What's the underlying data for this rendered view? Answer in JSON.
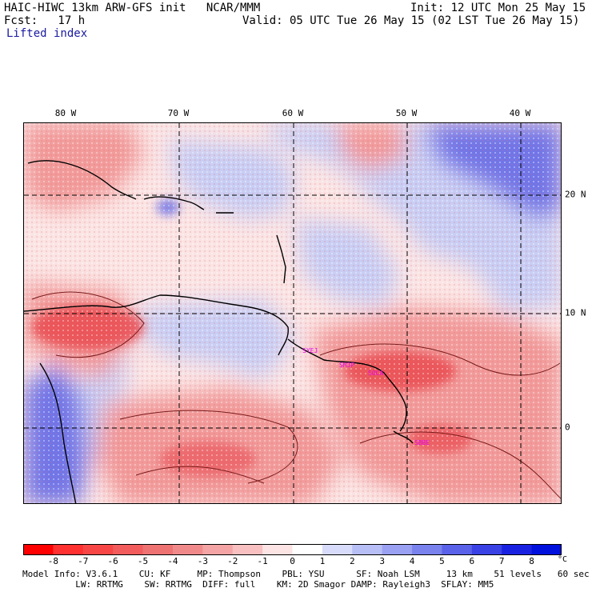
{
  "header": {
    "title_line": "HAIC-HIWC 13km ARW-GFS init   NCAR/MMM",
    "fcst_line": "Fcst:   17 h",
    "init_line": "Init: 12 UTC Mon 25 May 15",
    "valid_line": "Valid: 05 UTC Tue 26 May 15 (02 LST Tue 26 May 15)",
    "field_name": "Lifted index"
  },
  "map": {
    "longitude_labels": [
      "80 W",
      "70 W",
      "60 W",
      "50 W",
      "40 W"
    ],
    "latitude_labels": [
      "20 N",
      "10 N",
      "0"
    ],
    "station_labels": [
      "SYEJ",
      "SMJP",
      "SOCA",
      "SBBE"
    ],
    "colors": {
      "strong_negative": "#e8464b",
      "negative": "#f29a9a",
      "neutral": "#fbe4e4",
      "positive": "#c8cdf4",
      "strong_positive": "#6f74e8",
      "station_label": "#e600e6"
    }
  },
  "colorbar": {
    "ticks": [
      "-8",
      "-7",
      "-6",
      "-5",
      "-4",
      "-3",
      "-2",
      "-1",
      "0",
      "1",
      "2",
      "3",
      "4",
      "5",
      "6",
      "7",
      "8"
    ],
    "unit": "°C",
    "colors": [
      "#ff0000",
      "#ff3030",
      "#f84646",
      "#f25c5c",
      "#ee7272",
      "#f08a8a",
      "#f4a4a4",
      "#f8c0c0",
      "#fde4e4",
      "#ffffff",
      "#d8dcfa",
      "#b8bef6",
      "#9aa0f2",
      "#7a82ee",
      "#5a62ea",
      "#3a42e6",
      "#1a22e2",
      "#0010dd"
    ]
  },
  "footer": {
    "line1": "Model Info: V3.6.1    CU: KF     MP: Thompson    PBL: YSU      SF: Noah LSM     13 km    51 levels   60 sec",
    "line2": "          LW: RRTMG    SW: RRTMG  DIFF: full    KM: 2D Smagor DAMP: Rayleigh3  SFLAY: MM5"
  }
}
